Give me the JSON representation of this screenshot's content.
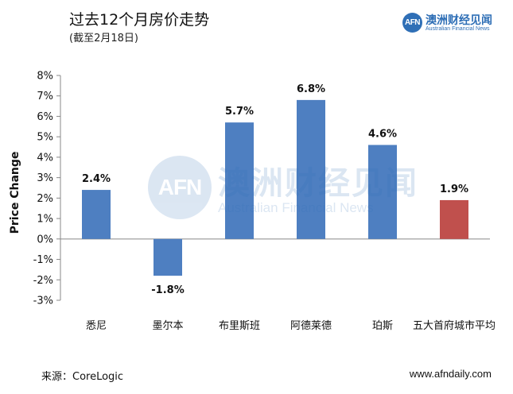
{
  "title": "过去12个月房价走势",
  "subtitle": "(截至2月18日)",
  "brand": {
    "logo_text": "AFN",
    "name": "澳洲财经见闻",
    "name_en": "Australian Financial News"
  },
  "source": "来源：CoreLogic",
  "website": "www.afndaily.com",
  "chart_data": {
    "type": "bar",
    "categories": [
      "悉尼",
      "墨尔本",
      "布里斯班",
      "阿德莱德",
      "珀斯",
      "五大首府城市平均"
    ],
    "values": [
      2.4,
      -1.8,
      5.7,
      6.8,
      4.6,
      1.9
    ],
    "value_labels": [
      "2.4%",
      "-1.8%",
      "5.7%",
      "6.8%",
      "4.6%",
      "1.9%"
    ],
    "bar_colors": [
      "#4e7fc1",
      "#4e7fc1",
      "#4e7fc1",
      "#4e7fc1",
      "#4e7fc1",
      "#c0504d"
    ],
    "ylabel": "Price Change",
    "ylim": [
      -3,
      8
    ],
    "yticks": [
      8,
      7,
      6,
      5,
      4,
      3,
      2,
      1,
      0,
      -1,
      -2,
      -3
    ],
    "ytick_labels": [
      "8%",
      "7%",
      "6%",
      "5%",
      "4%",
      "3%",
      "2%",
      "1%",
      "0%",
      "-1%",
      "-2%",
      "-3%"
    ],
    "grid": false,
    "legend": "none"
  }
}
